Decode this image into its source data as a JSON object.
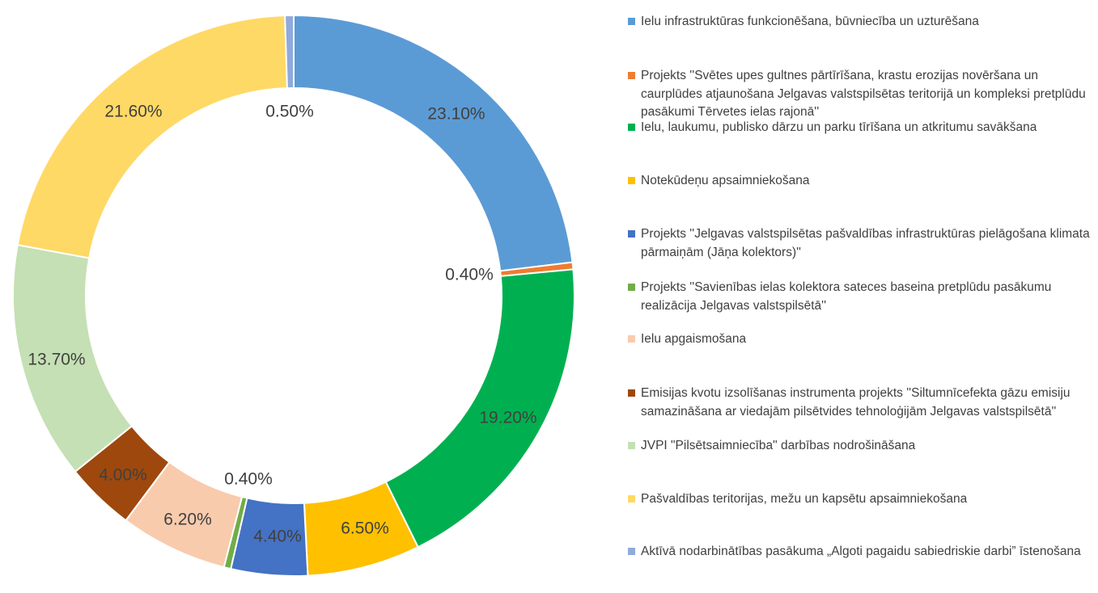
{
  "chart_data": {
    "type": "pie",
    "donut": true,
    "title": "",
    "legend_position": "right",
    "slices": [
      {
        "label": "Ielu infrastruktūras funkcionēšana, būvniecība un uzturēšana",
        "value": 23.1,
        "display": "23.10%",
        "color": "#5B9BD5"
      },
      {
        "label": "Projekts ''Svētes upes gultnes pārtīrīšana, krastu erozijas novēršana un caurplūdes atjaunošana Jelgavas valstspilsētas teritorijā un kompleksi pretplūdu pasākumi Tērvetes ielas rajonā''",
        "value": 0.4,
        "display": "0.40%",
        "color": "#ED7D31"
      },
      {
        "label": "Ielu, laukumu, publisko dārzu un parku tīrīšana un atkritumu savākšana",
        "value": 19.2,
        "display": "19.20%",
        "color": "#00B050"
      },
      {
        "label": "Notekūdeņu apsaimniekošana",
        "value": 6.5,
        "display": "6.50%",
        "color": "#FFC000"
      },
      {
        "label": "Projekts ''Jelgavas valstspilsētas pašvaldības infrastruktūras pielāgošana klimata pārmaiņām (Jāņa kolektors)''",
        "value": 4.4,
        "display": "4.40%",
        "color": "#4472C4"
      },
      {
        "label": "Projekts ''Savienības  ielas kolektora sateces baseina pretplūdu pasākumu realizācija Jelgavas valstspilsētā''",
        "value": 0.4,
        "display": "0.40%",
        "color": "#70AD47"
      },
      {
        "label": "Ielu apgaismošana",
        "value": 6.2,
        "display": "6.20%",
        "color": "#F8CBAD"
      },
      {
        "label": "Emisijas kvotu izsolīšanas instrumenta projekts ''Siltumnīcefekta gāzu emisiju samazināšana ar viedajām pilsētvides tehnoloģijām Jelgavas valstspilsētā''",
        "value": 4.0,
        "display": "4.00%",
        "color": "#9E480E"
      },
      {
        "label": "JVPI \"Pilsētsaimniecība\" darbības nodrošināšana",
        "value": 13.7,
        "display": "13.70%",
        "color": "#C5E0B4"
      },
      {
        "label": "Pašvaldības teritorijas, mežu un kapsētu apsaimniekošana",
        "value": 21.6,
        "display": "21.60%",
        "color": "#FFD966"
      },
      {
        "label": "Aktīvā nodarbinātības pasākuma „Algoti pagaidu sabiedriskie darbi” īstenošana",
        "value": 0.5,
        "display": "0.50%",
        "color": "#8FAADC"
      }
    ]
  }
}
